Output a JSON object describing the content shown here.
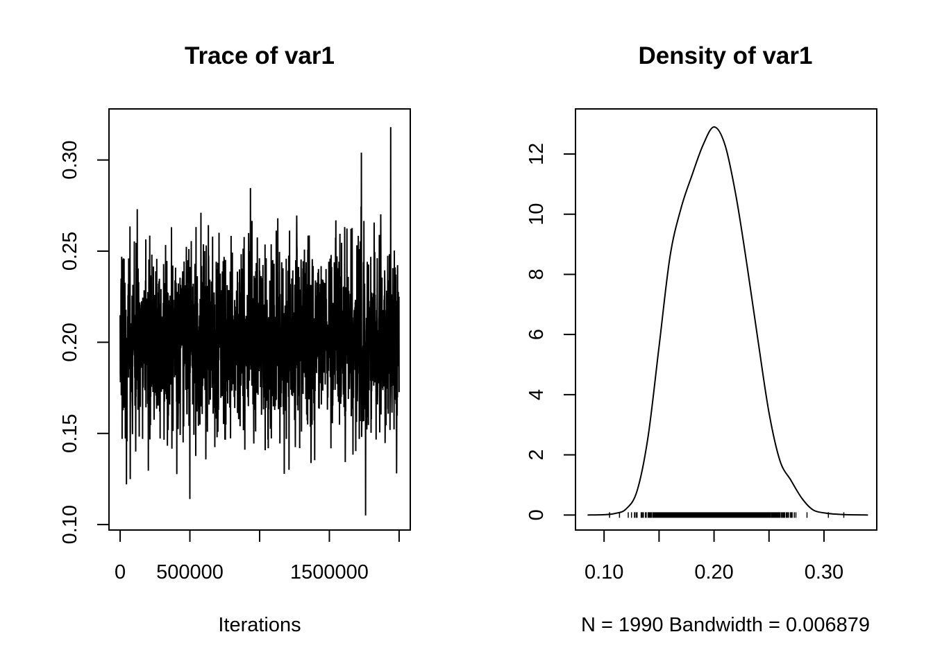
{
  "chart_data": [
    {
      "type": "line",
      "title": "Trace of var1",
      "xlabel": "Iterations",
      "ylabel": "",
      "x_range": [
        0,
        2000000
      ],
      "xlim": [
        -80000,
        2080000
      ],
      "ylim": [
        0.097,
        0.328
      ],
      "x_ticks": [
        0,
        500000,
        1000000,
        1500000,
        2000000
      ],
      "x_tick_labels": [
        "0",
        "500000",
        "",
        "1500000",
        ""
      ],
      "y_ticks": [
        0.1,
        0.15,
        0.2,
        0.25,
        0.3
      ],
      "y_tick_labels": [
        "0.10",
        "0.15",
        "0.20",
        "0.25",
        "0.30"
      ],
      "n_samples": 1990,
      "series_summary": {
        "mean": 0.2,
        "sd": 0.026,
        "min": 0.105,
        "max": 0.318
      },
      "notable_points": [
        {
          "x": 1760000,
          "y": 0.105
        },
        {
          "x": 1940000,
          "y": 0.318
        },
        {
          "x": 1730000,
          "y": 0.304
        },
        {
          "x": 500000,
          "y": 0.114
        },
        {
          "x": 45000,
          "y": 0.122
        }
      ],
      "line_color": "#000000"
    },
    {
      "type": "line",
      "title": "Density of var1",
      "xlabel": "N = 1990   Bandwidth = 0.006879",
      "ylabel": "",
      "xlim": [
        0.074,
        0.348
      ],
      "ylim": [
        -0.5,
        13.5
      ],
      "x_ticks": [
        0.1,
        0.15,
        0.2,
        0.25,
        0.3
      ],
      "x_tick_labels": [
        "0.10",
        "",
        "0.20",
        "",
        "0.30"
      ],
      "y_ticks": [
        0,
        2,
        4,
        6,
        8,
        10,
        12
      ],
      "y_tick_labels": [
        "0",
        "2",
        "4",
        "6",
        "8",
        "10",
        "12"
      ],
      "x": [
        0.085,
        0.1,
        0.11,
        0.12,
        0.13,
        0.14,
        0.15,
        0.16,
        0.17,
        0.18,
        0.19,
        0.2,
        0.21,
        0.22,
        0.23,
        0.24,
        0.25,
        0.26,
        0.27,
        0.28,
        0.29,
        0.3,
        0.31,
        0.32,
        0.34
      ],
      "y": [
        0.0,
        0.01,
        0.05,
        0.2,
        0.8,
        2.6,
        5.6,
        8.6,
        10.2,
        11.3,
        12.3,
        12.9,
        12.3,
        10.6,
        8.3,
        5.8,
        3.4,
        1.8,
        1.15,
        0.55,
        0.17,
        0.07,
        0.03,
        0.01,
        0.0
      ],
      "rug_range": [
        0.105,
        0.318
      ],
      "line_color": "#000000"
    }
  ]
}
